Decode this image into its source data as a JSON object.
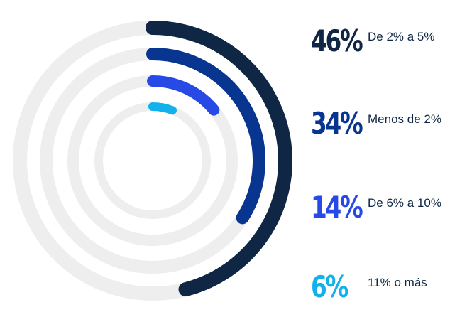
{
  "chart_data": {
    "type": "radial-bar",
    "unit": "%",
    "max": 100,
    "track_color": "#eeeeef",
    "series": [
      {
        "name": "De 2% a 5%",
        "value": 46,
        "label": "46%",
        "color": "#0f2745"
      },
      {
        "name": "Menos de 2%",
        "value": 34,
        "label": "34%",
        "color": "#083590"
      },
      {
        "name": "De 6% a 10%",
        "value": 14,
        "label": "14%",
        "color": "#2749e6"
      },
      {
        "name": "11% o más",
        "value": 6,
        "label": "6%",
        "color": "#11b1ec"
      }
    ]
  }
}
